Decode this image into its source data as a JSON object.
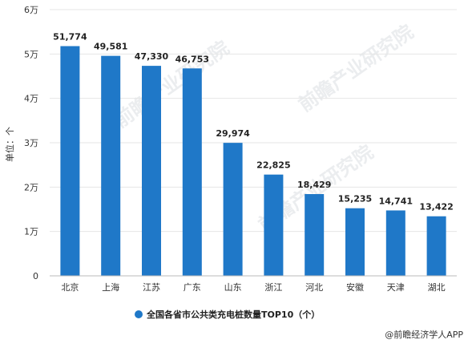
{
  "chart_data": {
    "type": "bar",
    "categories": [
      "北京",
      "上海",
      "江苏",
      "广东",
      "山东",
      "浙江",
      "河北",
      "安徽",
      "天津",
      "湖北"
    ],
    "series": [
      {
        "name": "全国各省市公共类充电桩数量TOP10（个）",
        "values": [
          51774,
          49581,
          47330,
          46753,
          29974,
          22825,
          18429,
          15235,
          14741,
          13422
        ]
      }
    ],
    "data_labels": [
      "51,774",
      "49,581",
      "47,330",
      "46,753",
      "29,974",
      "22,825",
      "18,429",
      "15,235",
      "14,741",
      "13,422"
    ],
    "ylim": [
      0,
      60000
    ],
    "ytick_values": [
      0,
      10000,
      20000,
      30000,
      40000,
      50000,
      60000
    ],
    "ytick_labels": [
      "0",
      "1万",
      "2万",
      "3万",
      "4万",
      "5万",
      "6万"
    ],
    "ylabel": "单位：个",
    "grid": true,
    "legend_position": "bottom",
    "bar_color": "#1f78c8"
  },
  "credit": "@前瞻经济学人APP",
  "watermark": "前瞻产业研究院"
}
